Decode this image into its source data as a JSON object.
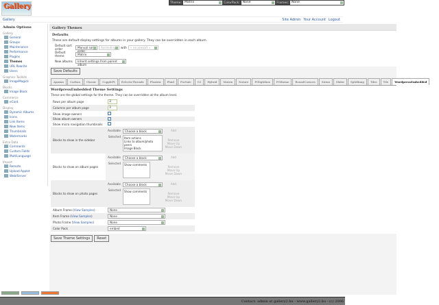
{
  "logo": "Gallery",
  "topbar": {
    "theme_label": "Theme:",
    "theme": "Matrix",
    "colorpack_label": "ColorPack:",
    "colorpack": "None",
    "frames_label": "Frames:",
    "frames": "None"
  },
  "breadcrumb": "Gallery",
  "user_links": [
    "Site Admin",
    "Your Account",
    "Logout"
  ],
  "sidebar": {
    "title": "Admin Options",
    "groups": [
      {
        "name": "Gallery",
        "items": [
          "General",
          "Groups",
          "Maintenance",
          "Performance",
          "Plugins",
          "Themes",
          "URL Rewrite",
          "Users"
        ]
      },
      {
        "name": "Graphics Toolkits",
        "items": [
          "ImageMagick"
        ]
      },
      {
        "name": "Blocks",
        "items": [
          "Image Block"
        ]
      },
      {
        "name": "Commerce",
        "items": [
          "eCard"
        ]
      },
      {
        "name": "Display",
        "items": [
          "Dynamic Albums",
          "Icons",
          "Link Items",
          "New Items",
          "Thumbnails",
          "Watermarks"
        ]
      },
      {
        "name": "Extra Data",
        "items": [
          "Comments",
          "Custom Fields",
          "MultiLanguage"
        ]
      },
      {
        "name": "Import",
        "items": [
          "Remote",
          "Upload Applet",
          "Web/Server"
        ]
      }
    ]
  },
  "page_title": "Gallery Themes",
  "defaults": {
    "title": "Defaults",
    "desc": "These are default display settings for albums in your gallery. They can be overridden in each album.",
    "sort_label": "Default sort order",
    "sort": "Manual sort order",
    "direction": "Ascending",
    "with_label": "with",
    "with": "« no presort »",
    "theme_label": "Default theme",
    "theme": "Matrix",
    "new_label": "New albums",
    "new": "Inherit settings from parent album",
    "save": "Save Defaults"
  },
  "tabs": [
    "Ajaxian",
    "Carbon",
    "Classic",
    "CoppleFt",
    "EclecticThreads",
    "Floatrix",
    "Fluid",
    "ForSale",
    "G1",
    "Hybrid",
    "Matrix",
    "Nature",
    "PGlightbox",
    "PGtheme",
    "RoundCorners",
    "Siriux",
    "Slider",
    "SplitBang",
    "Tiles",
    "Tile",
    "WordpressEmbedded"
  ],
  "active_tab": "WordpressEmbedded",
  "settings": {
    "title": "WordpressEmbedded Theme Settings",
    "desc": "These are the global settings for the theme. They can be overridden at the album level.",
    "rows_label": "Rows per album page",
    "rows": "3",
    "cols_label": "Columns per album page",
    "cols": "3",
    "img_owners_label": "Show image owners",
    "img_owners": false,
    "album_owners_label": "Show album owners",
    "album_owners": true,
    "micro_label": "Show micro navigation thumbnails",
    "micro": false,
    "available": "Available",
    "selected": "Selected",
    "choose": "Choose a block",
    "add": "Add",
    "remove": "Remove",
    "up": "Move Up",
    "down": "Move Down",
    "sidebar_blocks_label": "Blocks to show in the sidebar",
    "sidebar_blocks": [
      "Item actions",
      "Links to album/photo peers",
      "Image Block"
    ],
    "album_blocks_label": "Blocks to show on album pages",
    "album_blocks": [
      "Show comments"
    ],
    "photo_blocks_label": "Blocks to show on photo pages",
    "photo_blocks": [
      "Show comments"
    ],
    "album_frame_label": "Album Frame",
    "item_frame_label": "Item Frame",
    "photo_frame_label": "Photo Frame",
    "view_samples": "View Samples",
    "album_frame": "None",
    "item_frame": "None",
    "photo_frame": "None",
    "color_pack_label": "Color Pack",
    "color_pack": "embed",
    "save": "Save Theme Settings",
    "reset": "Reset"
  },
  "footer": "Contact: admin at gallery2.hu - www.gallery2.hu - (c) 2006"
}
